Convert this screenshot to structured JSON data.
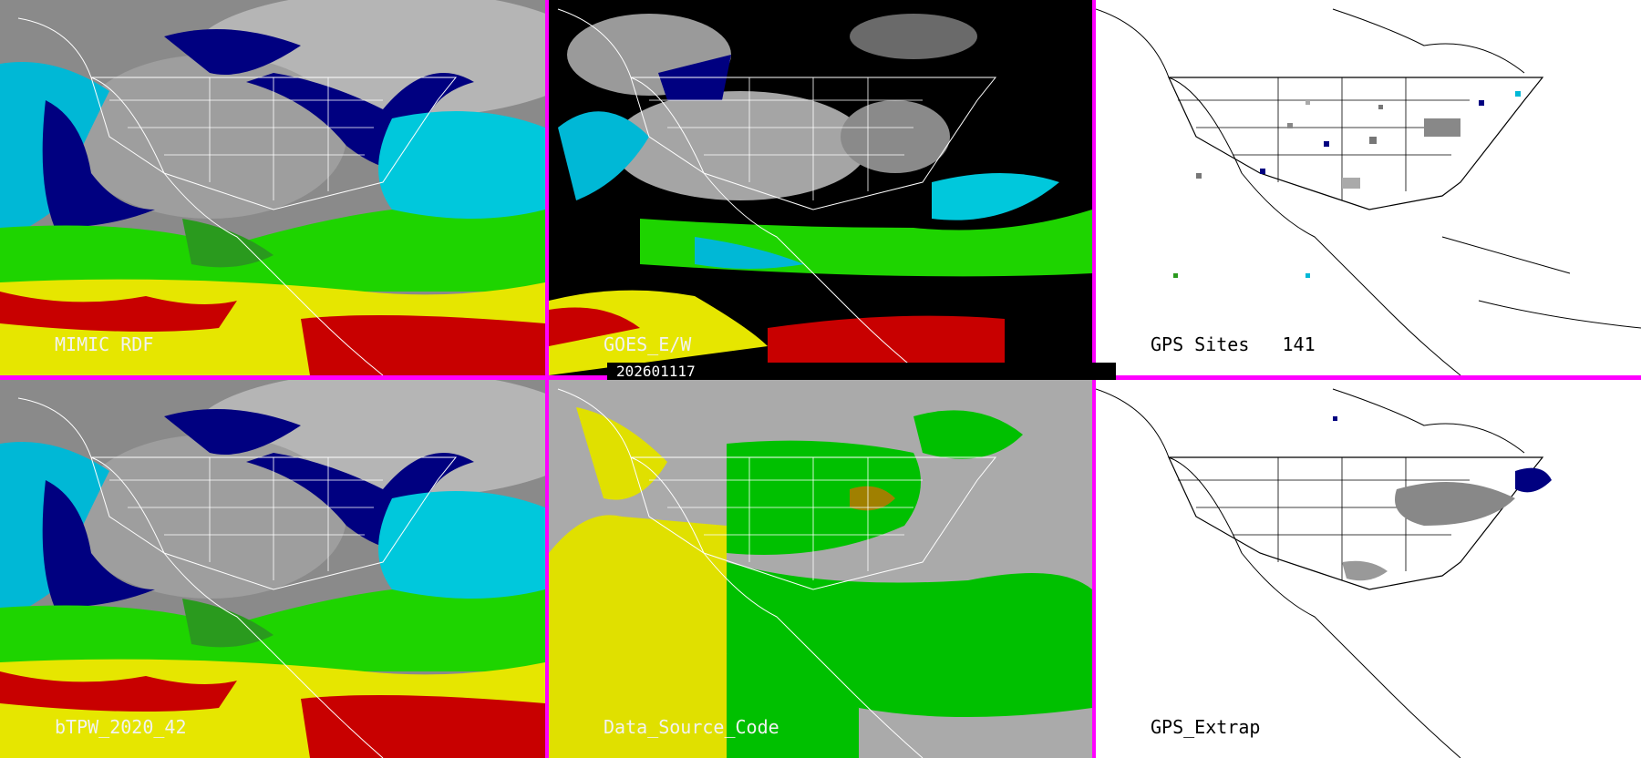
{
  "panels": {
    "mimic": {
      "label": "MIMIC RDF"
    },
    "goes": {
      "label": "GOES_E/W"
    },
    "gps_sites": {
      "label": "GPS Sites",
      "count": "141"
    },
    "btpw": {
      "label": "bTPW_2020_42"
    },
    "data_source": {
      "label": "Data_Source_Code"
    },
    "gps_extrap": {
      "label": "GPS_Extrap"
    }
  },
  "timestamp": "202601117",
  "colors": {
    "divider": "#ff00ff",
    "tpw_scale": [
      "#808080",
      "#000080",
      "#00b4d2",
      "#2a9a1e",
      "#22e000",
      "#e6e600",
      "#c80000"
    ],
    "source_codes": [
      "#aaaaaa",
      "#e0e000",
      "#00c000",
      "#a08000"
    ]
  }
}
